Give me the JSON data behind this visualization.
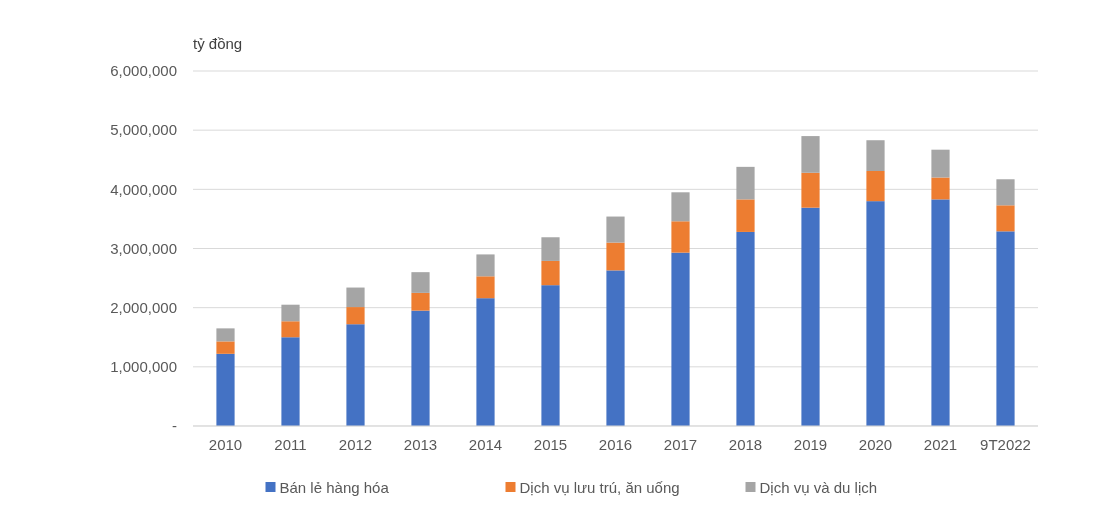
{
  "chart_data": {
    "type": "bar",
    "stacked": true,
    "ylabel": "tỷ đồng",
    "categories": [
      "2010",
      "2011",
      "2012",
      "2013",
      "2014",
      "2015",
      "2016",
      "2017",
      "2018",
      "2019",
      "2020",
      "2021",
      "9T2022"
    ],
    "series": [
      {
        "name": "Bán lẻ hàng hóa",
        "color": "#4472c4",
        "values": [
          1220000,
          1500000,
          1720000,
          1950000,
          2160000,
          2380000,
          2630000,
          2930000,
          3280000,
          3690000,
          3800000,
          3830000,
          3290000
        ]
      },
      {
        "name": "Dịch vụ lưu trú, ăn uống",
        "color": "#ed7d31",
        "values": [
          210000,
          270000,
          290000,
          300000,
          370000,
          410000,
          470000,
          530000,
          550000,
          590000,
          510000,
          370000,
          440000
        ]
      },
      {
        "name": "Dịch vụ và du lịch",
        "color": "#a5a5a5",
        "values": [
          220000,
          280000,
          330000,
          350000,
          370000,
          400000,
          440000,
          490000,
          550000,
          620000,
          520000,
          470000,
          440000
        ]
      }
    ],
    "ylim": [
      0,
      6000000
    ],
    "yticks": [
      {
        "value": 0,
        "label": "-"
      },
      {
        "value": 1000000,
        "label": "1,000,000"
      },
      {
        "value": 2000000,
        "label": "2,000,000"
      },
      {
        "value": 3000000,
        "label": "3,000,000"
      },
      {
        "value": 4000000,
        "label": "4,000,000"
      },
      {
        "value": 5000000,
        "label": "5,000,000"
      },
      {
        "value": 6000000,
        "label": "6,000,000"
      }
    ],
    "grid": "y",
    "legend": "bottom"
  }
}
